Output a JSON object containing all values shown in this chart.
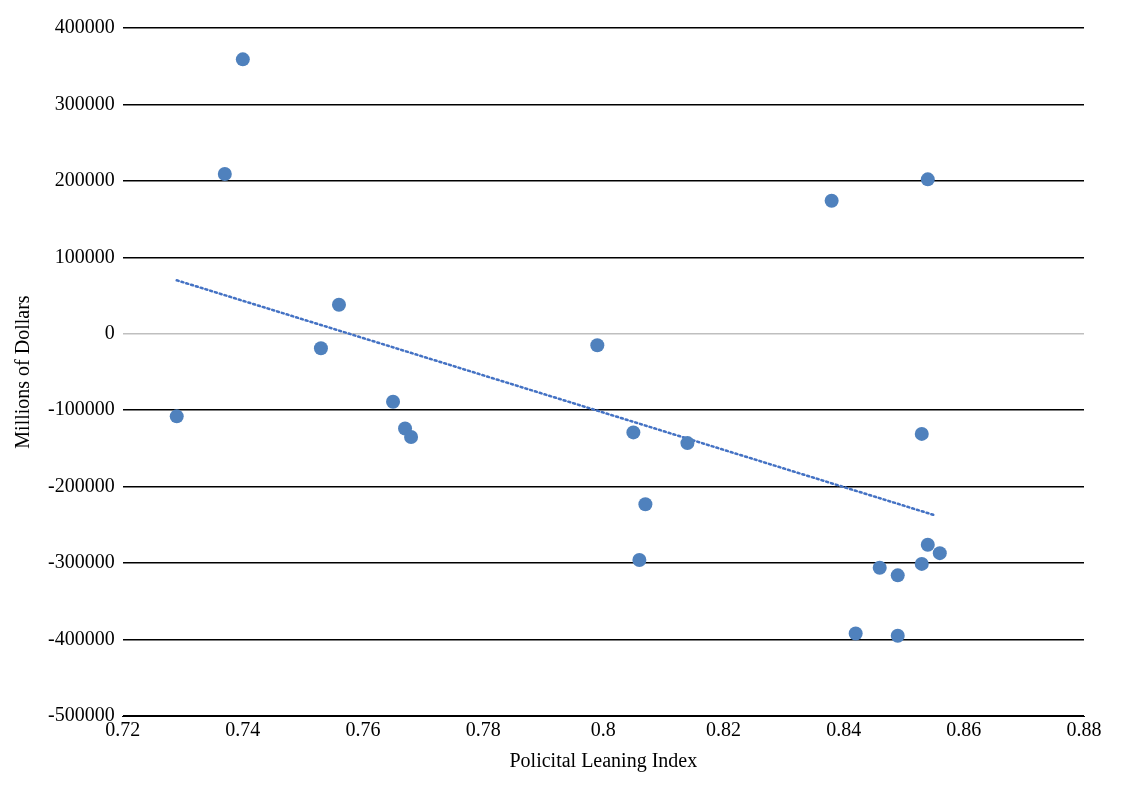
{
  "chart_data": {
    "type": "scatter",
    "xlabel": "Policital Leaning Index",
    "ylabel": "Millions of Dollars",
    "xlim": [
      0.72,
      0.88
    ],
    "xticks": [
      0.72,
      0.74,
      0.76,
      0.78,
      0.8,
      0.82,
      0.84,
      0.86,
      0.88
    ],
    "ylim": [
      -500000,
      400000
    ],
    "yticks": [
      -500000,
      -400000,
      -300000,
      -200000,
      -100000,
      0,
      100000,
      200000,
      300000,
      400000
    ],
    "grid": "y",
    "legend": false,
    "marker": "circle",
    "series": [
      {
        "type": "scatter",
        "color": "#4f81bd",
        "x": [
          0.729,
          0.737,
          0.74,
          0.753,
          0.756,
          0.765,
          0.767,
          0.768,
          0.799,
          0.805,
          0.806,
          0.807,
          0.814,
          0.838,
          0.842,
          0.846,
          0.849,
          0.849,
          0.853,
          0.853,
          0.854,
          0.854,
          0.856
        ],
        "values": [
          -108000,
          209000,
          359000,
          -19000,
          38000,
          -89000,
          -124000,
          -135000,
          -15000,
          -129000,
          -296000,
          -223000,
          -143000,
          174000,
          -392000,
          -306000,
          -316000,
          -395000,
          -131000,
          -301000,
          202000,
          -276000,
          -287000
        ]
      },
      {
        "type": "line",
        "color": "#4472c4",
        "line_style": "dotted",
        "marker": "none",
        "x": [
          0.729,
          0.855
        ],
        "values": [
          70000,
          -237000
        ]
      }
    ]
  }
}
